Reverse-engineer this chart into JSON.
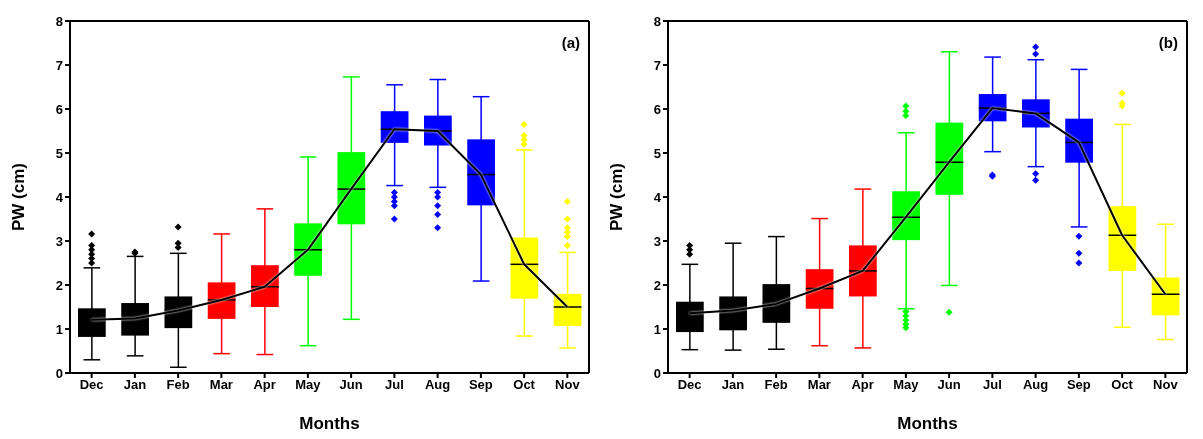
{
  "chart_data": [
    {
      "type": "box",
      "categories": [
        "Dec",
        "Jan",
        "Feb",
        "Mar",
        "Apr",
        "May",
        "Jun",
        "Jul",
        "Aug",
        "Sep",
        "Oct",
        "Nov"
      ],
      "xlabel": "Months",
      "ylabel": "PW (cm)",
      "ylim": [
        0,
        8
      ],
      "yticks": [
        0,
        1,
        2,
        3,
        4,
        5,
        6,
        7,
        8
      ],
      "annotations": [
        "(a)"
      ],
      "series": [
        {
          "type": "box",
          "marker": "diamond",
          "colors": [
            "#000000",
            "#000000",
            "#000000",
            "#ff0000",
            "#ff0000",
            "#00ff00",
            "#00ff00",
            "#0000ff",
            "#0000ff",
            "#0000ff",
            "#ffff00",
            "#ffff00"
          ],
          "boxes": [
            {
              "low": 0.3,
              "q1": 0.82,
              "median": 1.21,
              "q3": 1.47,
              "high": 2.39,
              "outliers": [
                2.5,
                2.6,
                2.7,
                2.8,
                2.9,
                3.16
              ]
            },
            {
              "low": 0.39,
              "q1": 0.85,
              "median": 1.24,
              "q3": 1.59,
              "high": 2.65,
              "outliers": [
                2.72,
                2.75
              ]
            },
            {
              "low": 0.13,
              "q1": 1.02,
              "median": 1.42,
              "q3": 1.74,
              "high": 2.72,
              "outliers": [
                2.85,
                2.95,
                3.32
              ]
            },
            {
              "low": 0.44,
              "q1": 1.23,
              "median": 1.66,
              "q3": 2.06,
              "high": 3.16
            },
            {
              "low": 0.42,
              "q1": 1.5,
              "median": 1.96,
              "q3": 2.45,
              "high": 3.73
            },
            {
              "low": 0.62,
              "q1": 2.21,
              "median": 2.8,
              "q3": 3.4,
              "high": 4.91
            },
            {
              "low": 1.22,
              "q1": 3.38,
              "median": 4.18,
              "q3": 5.02,
              "high": 6.73
            },
            {
              "low": 4.26,
              "q1": 5.23,
              "median": 5.54,
              "q3": 5.95,
              "high": 6.55,
              "outliers": [
                4.1,
                4.0,
                3.9,
                3.8,
                3.5
              ]
            },
            {
              "low": 4.22,
              "q1": 5.17,
              "median": 5.5,
              "q3": 5.85,
              "high": 6.67,
              "outliers": [
                4.1,
                4.0,
                3.8,
                3.6,
                3.3
              ]
            },
            {
              "low": 2.09,
              "q1": 3.81,
              "median": 4.51,
              "q3": 5.31,
              "high": 6.28
            },
            {
              "low": 0.84,
              "q1": 1.69,
              "median": 2.47,
              "q3": 3.08,
              "high": 5.07,
              "outliers": [
                5.2,
                5.3,
                5.4,
                5.65
              ]
            },
            {
              "low": 0.57,
              "q1": 1.07,
              "median": 1.5,
              "q3": 1.8,
              "high": 2.74,
              "outliers": [
                2.9,
                3.1,
                3.2,
                3.3,
                3.5,
                3.9
              ]
            }
          ]
        },
        {
          "type": "line",
          "marker": "none",
          "color": "#000000",
          "values": [
            1.21,
            1.24,
            1.42,
            1.66,
            1.96,
            2.8,
            4.18,
            5.54,
            5.5,
            4.51,
            2.47,
            1.5
          ]
        }
      ]
    },
    {
      "type": "box",
      "categories": [
        "Dec",
        "Jan",
        "Feb",
        "Mar",
        "Apr",
        "May",
        "Jun",
        "Jul",
        "Aug",
        "Sep",
        "Oct",
        "Nov"
      ],
      "xlabel": "Months",
      "ylabel": "PW (cm)",
      "ylim": [
        0,
        8
      ],
      "yticks": [
        0,
        1,
        2,
        3,
        4,
        5,
        6,
        7,
        8
      ],
      "annotations": [
        "(b)"
      ],
      "series": [
        {
          "type": "box",
          "marker": "diamond",
          "colors": [
            "#000000",
            "#000000",
            "#000000",
            "#ff0000",
            "#ff0000",
            "#00ff00",
            "#00ff00",
            "#0000ff",
            "#0000ff",
            "#0000ff",
            "#ffff00",
            "#ffff00"
          ],
          "boxes": [
            {
              "low": 0.53,
              "q1": 0.93,
              "median": 1.36,
              "q3": 1.62,
              "high": 2.47,
              "outliers": [
                2.7,
                2.8,
                2.9
              ]
            },
            {
              "low": 0.52,
              "q1": 0.97,
              "median": 1.42,
              "q3": 1.74,
              "high": 2.95
            },
            {
              "low": 0.54,
              "q1": 1.14,
              "median": 1.57,
              "q3": 2.02,
              "high": 3.1
            },
            {
              "low": 0.62,
              "q1": 1.46,
              "median": 1.92,
              "q3": 2.36,
              "high": 3.51
            },
            {
              "low": 0.57,
              "q1": 1.74,
              "median": 2.32,
              "q3": 2.9,
              "high": 4.18
            },
            {
              "low": 1.46,
              "q1": 3.02,
              "median": 3.54,
              "q3": 4.13,
              "high": 5.46,
              "outliers": [
                5.85,
                5.95,
                6.07,
                1.4,
                1.3,
                1.2,
                1.1,
                1.03
              ]
            },
            {
              "low": 1.99,
              "q1": 4.05,
              "median": 4.79,
              "q3": 5.69,
              "high": 7.3,
              "outliers": [
                1.38
              ]
            },
            {
              "low": 5.03,
              "q1": 5.72,
              "median": 6.02,
              "q3": 6.34,
              "high": 7.18,
              "outliers": [
                4.47,
                4.5
              ]
            },
            {
              "low": 4.69,
              "q1": 5.58,
              "median": 5.9,
              "q3": 6.22,
              "high": 7.12,
              "outliers": [
                7.25,
                7.41,
                4.53,
                4.38
              ]
            },
            {
              "low": 3.32,
              "q1": 4.78,
              "median": 5.24,
              "q3": 5.78,
              "high": 6.9,
              "outliers": [
                3.11,
                2.72,
                2.5
              ]
            },
            {
              "low": 1.04,
              "q1": 2.32,
              "median": 3.13,
              "q3": 3.79,
              "high": 5.65,
              "outliers": [
                6.07,
                6.13,
                6.36
              ]
            },
            {
              "low": 0.76,
              "q1": 1.31,
              "median": 1.79,
              "q3": 2.17,
              "high": 3.38
            }
          ]
        },
        {
          "type": "line",
          "marker": "none",
          "color": "#000000",
          "values": [
            1.36,
            1.42,
            1.57,
            1.92,
            2.32,
            3.54,
            4.79,
            6.02,
            5.9,
            5.24,
            3.13,
            1.79
          ]
        }
      ]
    }
  ]
}
